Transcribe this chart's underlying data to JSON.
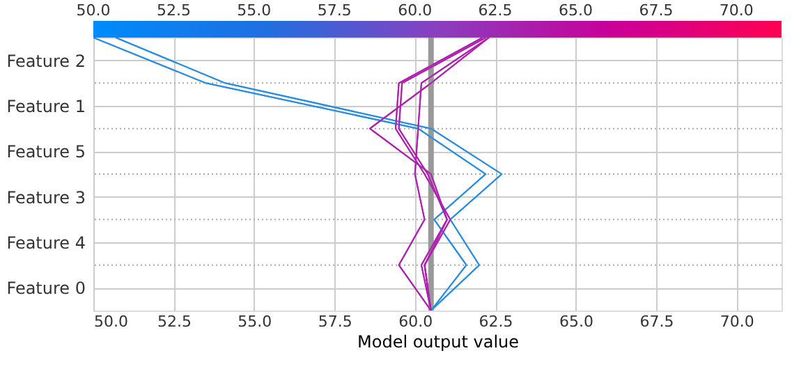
{
  "chart_data": {
    "type": "line",
    "orientation": "horizontal",
    "xlabel": "Model output value",
    "xlim": [
      50,
      71.4
    ],
    "xticks": [
      {
        "value": 50,
        "label": "50.0"
      },
      52.5,
      {
        "value": 55,
        "label": "55.0"
      },
      57.5,
      {
        "value": 60,
        "label": "60.0"
      },
      62.5,
      {
        "value": 65,
        "label": "65.0"
      },
      67.5,
      {
        "value": 70,
        "label": "70.0"
      }
    ],
    "clim": [
      50,
      71.4
    ],
    "cticks": [
      {
        "value": 50,
        "label": "50.0"
      },
      52.5,
      {
        "value": 55,
        "label": "55.0"
      },
      57.5,
      {
        "value": 60,
        "label": "60.0"
      },
      62.5,
      {
        "value": 65,
        "label": "65.0"
      },
      67.5,
      {
        "value": 70,
        "label": "70.0"
      }
    ],
    "categories": [
      null,
      null,
      null,
      null,
      null,
      null,
      null
    ],
    "annotations": [
      "Feature 2",
      "Feature 1",
      "Feature 5",
      "Feature 3",
      "Feature 4",
      "Feature 0"
    ],
    "grid": true,
    "legend": false,
    "marker": "none",
    "line_style": "solid",
    "ref_lines": [
      {
        "axis": "x",
        "value": 60.5,
        "label": null,
        "color": "#999999"
      }
    ],
    "series": [
      {
        "color": "#2a8ee0",
        "values": [
          50.0,
          53.5,
          60.1,
          62.2,
          60.6,
          61.6,
          60.5
        ]
      },
      {
        "color": "#2a8ee0",
        "values": [
          50.7,
          54.1,
          60.5,
          62.7,
          61.1,
          62.0,
          60.5
        ]
      },
      {
        "color": "#b020b0",
        "values": [
          62.1,
          59.5,
          59.4,
          60.3,
          61.1,
          60.3,
          60.5
        ]
      },
      {
        "color": "#b020b0",
        "values": [
          62.2,
          59.6,
          59.5,
          60.4,
          61.0,
          60.2,
          60.5
        ]
      },
      {
        "color": "#b020b0",
        "values": [
          62.3,
          60.2,
          60.1,
          60.0,
          60.3,
          59.5,
          60.5
        ]
      },
      {
        "color": "#b020b0",
        "values": [
          62.3,
          60.5,
          58.6,
          60.5,
          61.0,
          60.3,
          60.5
        ]
      }
    ]
  }
}
